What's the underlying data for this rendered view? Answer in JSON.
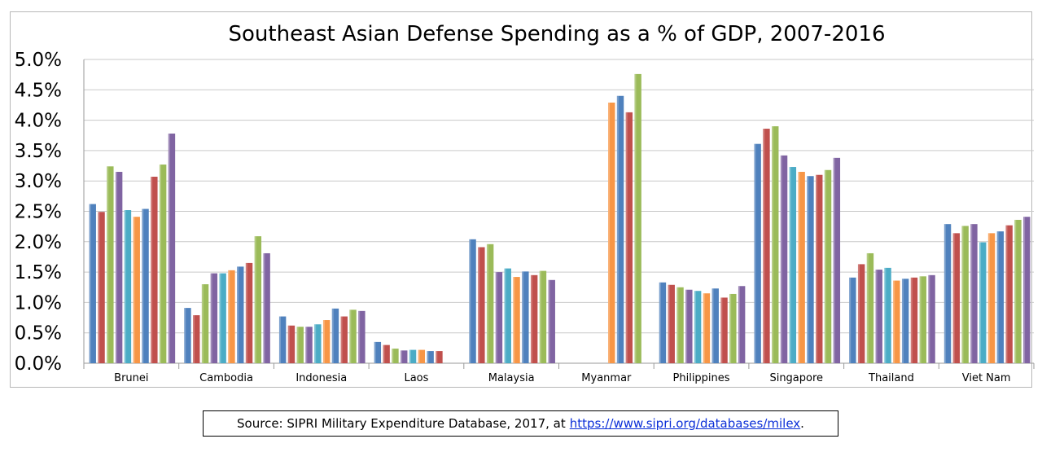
{
  "chart_data": {
    "type": "bar",
    "title": "Southeast Asian Defense Spending as a % of GDP, 2007-2016",
    "categories": [
      "Brunei",
      "Cambodia",
      "Indonesia",
      "Laos",
      "Malaysia",
      "Myanmar",
      "Philippines",
      "Singapore",
      "Thailand",
      "Viet Nam"
    ],
    "ylim": [
      0,
      5.0
    ],
    "yticks": [
      "0.0%",
      "0.5%",
      "1.0%",
      "1.5%",
      "2.0%",
      "2.5%",
      "3.0%",
      "3.5%",
      "4.0%",
      "4.5%",
      "5.0%"
    ],
    "ytick_values": [
      0,
      0.5,
      1.0,
      1.5,
      2.0,
      2.5,
      3.0,
      3.5,
      4.0,
      4.5,
      5.0
    ],
    "grid": true,
    "legend": "none",
    "series_colors": [
      "#4f81bd",
      "#c0504d",
      "#9bbb59",
      "#8064a2",
      "#4bacc6",
      "#f79646",
      "#4f81bd",
      "#c0504d",
      "#9bbb59",
      "#8064a2"
    ],
    "values": [
      [
        2.62,
        2.49,
        3.24,
        3.15,
        2.52,
        2.41,
        2.54,
        3.07,
        3.27,
        3.78
      ],
      [
        0.91,
        0.79,
        1.3,
        1.48,
        1.48,
        1.53,
        1.59,
        1.65,
        2.09,
        1.81
      ],
      [
        0.77,
        0.62,
        0.6,
        0.6,
        0.64,
        0.71,
        0.9,
        0.77,
        0.88,
        0.86
      ],
      [
        0.35,
        0.3,
        0.24,
        0.21,
        0.22,
        0.22,
        0.2,
        0.2,
        null,
        null
      ],
      [
        2.04,
        1.91,
        1.96,
        1.5,
        1.56,
        1.42,
        1.51,
        1.45,
        1.52,
        1.37
      ],
      [
        null,
        null,
        null,
        null,
        null,
        4.29,
        4.4,
        4.13,
        4.76,
        null
      ],
      [
        1.33,
        1.29,
        1.25,
        1.21,
        1.19,
        1.15,
        1.23,
        1.08,
        1.14,
        1.27
      ],
      [
        3.61,
        3.86,
        3.9,
        3.42,
        3.23,
        3.15,
        3.08,
        3.1,
        3.18,
        3.38
      ],
      [
        1.41,
        1.63,
        1.81,
        1.54,
        1.57,
        1.36,
        1.39,
        1.41,
        1.43,
        1.45
      ],
      [
        2.29,
        2.14,
        2.26,
        2.29,
        1.99,
        2.14,
        2.17,
        2.27,
        2.36,
        2.41
      ]
    ]
  },
  "source": {
    "prefix": "Source: SIPRI Military Expenditure Database, 2017, at",
    "link_text": "https://www.sipri.org/databases/milex",
    "suffix": "."
  }
}
